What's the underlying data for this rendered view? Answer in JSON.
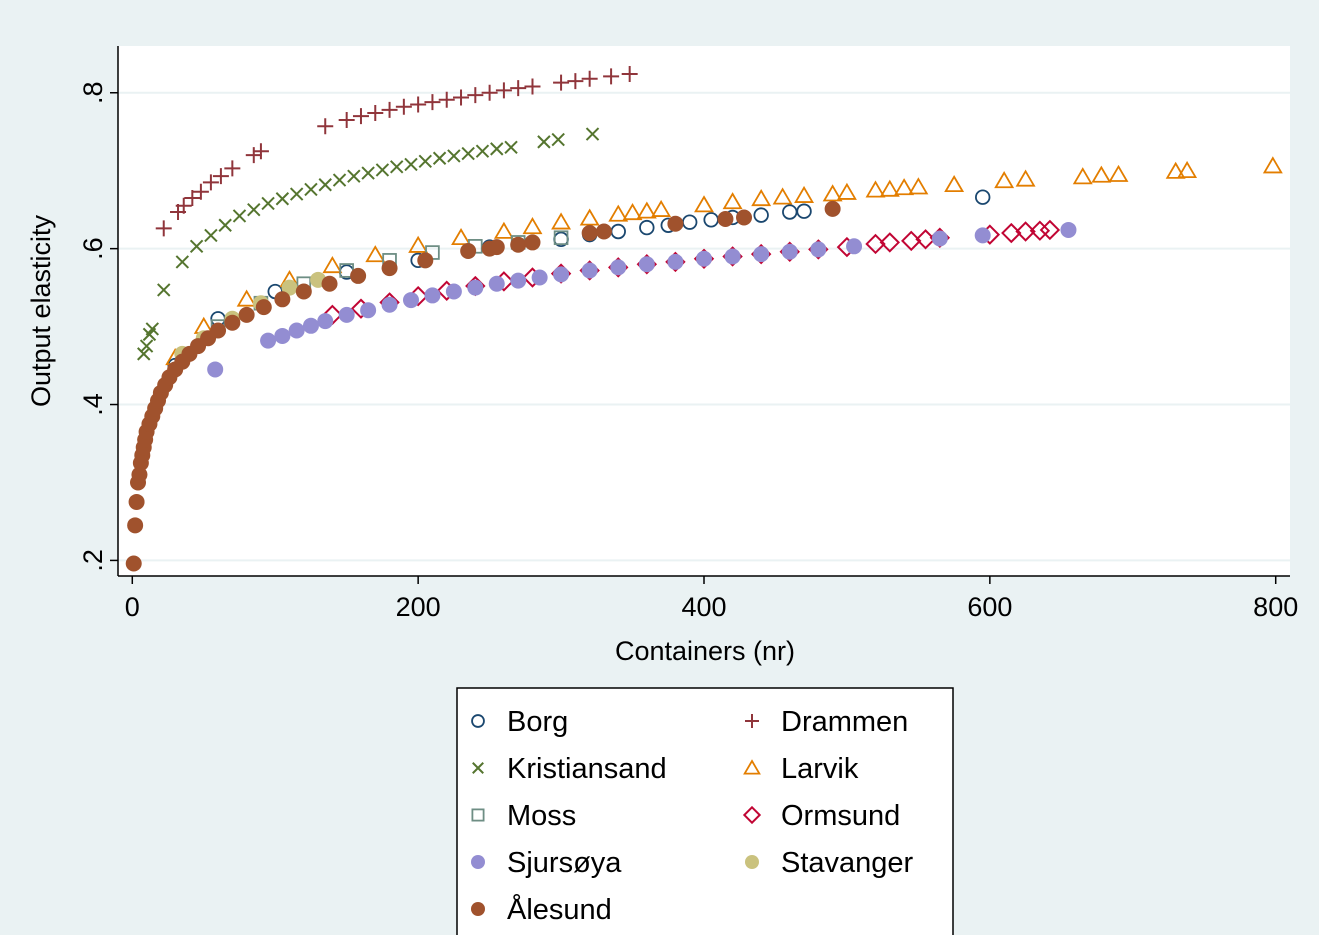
{
  "chart_data": {
    "type": "scatter",
    "title": "",
    "xlabel": "Containers (nr)",
    "ylabel": "Output elasticity",
    "xlim": [
      -10,
      810
    ],
    "ylim": [
      0.18,
      0.86
    ],
    "xticks": [
      {
        "value": 0,
        "label": "0"
      },
      {
        "value": 200,
        "label": "200"
      },
      {
        "value": 400,
        "label": "400"
      },
      {
        "value": 600,
        "label": "600"
      },
      {
        "value": 800,
        "label": "800"
      }
    ],
    "yticks": [
      {
        "value": 0.2,
        "label": ".2"
      },
      {
        "value": 0.4,
        "label": ".4"
      },
      {
        "value": 0.6,
        "label": ".6"
      },
      {
        "value": 0.8,
        "label": ".8"
      }
    ],
    "grid": true,
    "legend_position": "bottom",
    "series": [
      {
        "name": "Borg",
        "marker": "circle-open",
        "color": "#1a476f",
        "points": [
          [
            30,
            0.45
          ],
          [
            60,
            0.51
          ],
          [
            100,
            0.545
          ],
          [
            150,
            0.57
          ],
          [
            200,
            0.585
          ],
          [
            250,
            0.602
          ],
          [
            300,
            0.612
          ],
          [
            320,
            0.618
          ],
          [
            340,
            0.622
          ],
          [
            360,
            0.627
          ],
          [
            375,
            0.63
          ],
          [
            390,
            0.634
          ],
          [
            405,
            0.637
          ],
          [
            420,
            0.64
          ],
          [
            440,
            0.643
          ],
          [
            460,
            0.647
          ],
          [
            470,
            0.648
          ],
          [
            490,
            0.651
          ],
          [
            595,
            0.666
          ]
        ]
      },
      {
        "name": "Drammen",
        "marker": "plus",
        "color": "#90353b",
        "points": [
          [
            22,
            0.626
          ],
          [
            32,
            0.647
          ],
          [
            36,
            0.655
          ],
          [
            42,
            0.665
          ],
          [
            48,
            0.673
          ],
          [
            55,
            0.685
          ],
          [
            62,
            0.693
          ],
          [
            70,
            0.703
          ],
          [
            85,
            0.72
          ],
          [
            90,
            0.725
          ],
          [
            135,
            0.757
          ],
          [
            150,
            0.765
          ],
          [
            160,
            0.77
          ],
          [
            170,
            0.774
          ],
          [
            180,
            0.778
          ],
          [
            190,
            0.782
          ],
          [
            200,
            0.785
          ],
          [
            210,
            0.788
          ],
          [
            220,
            0.791
          ],
          [
            230,
            0.794
          ],
          [
            240,
            0.797
          ],
          [
            250,
            0.8
          ],
          [
            260,
            0.803
          ],
          [
            270,
            0.806
          ],
          [
            280,
            0.808
          ],
          [
            300,
            0.813
          ],
          [
            310,
            0.815
          ],
          [
            320,
            0.818
          ],
          [
            335,
            0.821
          ],
          [
            348,
            0.824
          ]
        ]
      },
      {
        "name": "Kristiansand",
        "marker": "x",
        "color": "#55752f",
        "points": [
          [
            8,
            0.465
          ],
          [
            10,
            0.475
          ],
          [
            12,
            0.49
          ],
          [
            14,
            0.497
          ],
          [
            22,
            0.547
          ],
          [
            35,
            0.583
          ],
          [
            45,
            0.603
          ],
          [
            55,
            0.617
          ],
          [
            65,
            0.63
          ],
          [
            75,
            0.642
          ],
          [
            85,
            0.65
          ],
          [
            95,
            0.658
          ],
          [
            105,
            0.664
          ],
          [
            115,
            0.67
          ],
          [
            125,
            0.676
          ],
          [
            135,
            0.682
          ],
          [
            145,
            0.688
          ],
          [
            155,
            0.693
          ],
          [
            165,
            0.697
          ],
          [
            175,
            0.701
          ],
          [
            185,
            0.705
          ],
          [
            195,
            0.708
          ],
          [
            205,
            0.712
          ],
          [
            215,
            0.716
          ],
          [
            225,
            0.719
          ],
          [
            235,
            0.722
          ],
          [
            245,
            0.725
          ],
          [
            255,
            0.728
          ],
          [
            265,
            0.73
          ],
          [
            288,
            0.737
          ],
          [
            298,
            0.74
          ],
          [
            322,
            0.747
          ]
        ]
      },
      {
        "name": "Larvik",
        "marker": "triangle-open",
        "color": "#e37e00",
        "points": [
          [
            30,
            0.46
          ],
          [
            50,
            0.5
          ],
          [
            80,
            0.535
          ],
          [
            110,
            0.56
          ],
          [
            140,
            0.578
          ],
          [
            170,
            0.592
          ],
          [
            200,
            0.604
          ],
          [
            230,
            0.614
          ],
          [
            260,
            0.622
          ],
          [
            280,
            0.628
          ],
          [
            300,
            0.634
          ],
          [
            320,
            0.639
          ],
          [
            340,
            0.644
          ],
          [
            350,
            0.646
          ],
          [
            360,
            0.648
          ],
          [
            370,
            0.65
          ],
          [
            400,
            0.656
          ],
          [
            420,
            0.66
          ],
          [
            440,
            0.664
          ],
          [
            455,
            0.666
          ],
          [
            470,
            0.668
          ],
          [
            490,
            0.67
          ],
          [
            500,
            0.672
          ],
          [
            520,
            0.675
          ],
          [
            530,
            0.676
          ],
          [
            540,
            0.678
          ],
          [
            550,
            0.679
          ],
          [
            575,
            0.682
          ],
          [
            610,
            0.687
          ],
          [
            625,
            0.689
          ],
          [
            665,
            0.692
          ],
          [
            678,
            0.694
          ],
          [
            690,
            0.695
          ],
          [
            730,
            0.699
          ],
          [
            738,
            0.7
          ],
          [
            798,
            0.706
          ]
        ]
      },
      {
        "name": "Moss",
        "marker": "square-open",
        "color": "#6e8e84",
        "points": [
          [
            35,
            0.46
          ],
          [
            60,
            0.5
          ],
          [
            90,
            0.53
          ],
          [
            120,
            0.555
          ],
          [
            150,
            0.572
          ],
          [
            180,
            0.585
          ],
          [
            210,
            0.595
          ],
          [
            240,
            0.603
          ],
          [
            270,
            0.608
          ],
          [
            300,
            0.614
          ]
        ]
      },
      {
        "name": "Ormsund",
        "marker": "diamond-open",
        "color": "#c10534",
        "points": [
          [
            140,
            0.515
          ],
          [
            160,
            0.523
          ],
          [
            180,
            0.531
          ],
          [
            200,
            0.539
          ],
          [
            220,
            0.546
          ],
          [
            240,
            0.552
          ],
          [
            260,
            0.558
          ],
          [
            280,
            0.563
          ],
          [
            300,
            0.568
          ],
          [
            320,
            0.572
          ],
          [
            340,
            0.576
          ],
          [
            360,
            0.58
          ],
          [
            380,
            0.583
          ],
          [
            400,
            0.587
          ],
          [
            420,
            0.59
          ],
          [
            440,
            0.593
          ],
          [
            460,
            0.596
          ],
          [
            480,
            0.599
          ],
          [
            500,
            0.602
          ],
          [
            520,
            0.606
          ],
          [
            530,
            0.608
          ],
          [
            545,
            0.61
          ],
          [
            555,
            0.612
          ],
          [
            565,
            0.614
          ],
          [
            600,
            0.618
          ],
          [
            615,
            0.62
          ],
          [
            625,
            0.622
          ],
          [
            635,
            0.623
          ],
          [
            642,
            0.624
          ]
        ]
      },
      {
        "name": "Sjursøya",
        "marker": "circle",
        "color": "#938dd2",
        "points": [
          [
            58,
            0.445
          ],
          [
            95,
            0.482
          ],
          [
            105,
            0.488
          ],
          [
            115,
            0.495
          ],
          [
            125,
            0.501
          ],
          [
            135,
            0.507
          ],
          [
            150,
            0.515
          ],
          [
            165,
            0.521
          ],
          [
            180,
            0.528
          ],
          [
            195,
            0.534
          ],
          [
            210,
            0.54
          ],
          [
            225,
            0.545
          ],
          [
            240,
            0.55
          ],
          [
            255,
            0.555
          ],
          [
            270,
            0.559
          ],
          [
            285,
            0.563
          ],
          [
            300,
            0.567
          ],
          [
            320,
            0.572
          ],
          [
            340,
            0.576
          ],
          [
            360,
            0.58
          ],
          [
            380,
            0.583
          ],
          [
            400,
            0.587
          ],
          [
            420,
            0.59
          ],
          [
            440,
            0.593
          ],
          [
            460,
            0.596
          ],
          [
            480,
            0.599
          ],
          [
            505,
            0.603
          ],
          [
            565,
            0.613
          ],
          [
            595,
            0.617
          ],
          [
            655,
            0.624
          ]
        ]
      },
      {
        "name": "Stavanger",
        "marker": "circle",
        "color": "#cac27e",
        "points": [
          [
            35,
            0.465
          ],
          [
            50,
            0.485
          ],
          [
            70,
            0.51
          ],
          [
            90,
            0.53
          ],
          [
            110,
            0.55
          ],
          [
            130,
            0.56
          ]
        ]
      },
      {
        "name": "Ålesund",
        "marker": "circle",
        "color": "#a0522d",
        "points": [
          [
            1,
            0.196
          ],
          [
            2,
            0.245
          ],
          [
            3,
            0.275
          ],
          [
            4,
            0.3
          ],
          [
            5,
            0.31
          ],
          [
            6,
            0.325
          ],
          [
            7,
            0.335
          ],
          [
            8,
            0.345
          ],
          [
            9,
            0.355
          ],
          [
            10,
            0.365
          ],
          [
            12,
            0.375
          ],
          [
            14,
            0.385
          ],
          [
            16,
            0.395
          ],
          [
            18,
            0.405
          ],
          [
            20,
            0.415
          ],
          [
            23,
            0.425
          ],
          [
            26,
            0.435
          ],
          [
            30,
            0.445
          ],
          [
            35,
            0.455
          ],
          [
            40,
            0.465
          ],
          [
            46,
            0.475
          ],
          [
            53,
            0.485
          ],
          [
            60,
            0.495
          ],
          [
            70,
            0.505
          ],
          [
            80,
            0.515
          ],
          [
            92,
            0.525
          ],
          [
            105,
            0.535
          ],
          [
            120,
            0.545
          ],
          [
            138,
            0.555
          ],
          [
            158,
            0.565
          ],
          [
            180,
            0.575
          ],
          [
            205,
            0.585
          ],
          [
            235,
            0.597
          ],
          [
            250,
            0.6
          ],
          [
            255,
            0.602
          ],
          [
            270,
            0.605
          ],
          [
            280,
            0.608
          ],
          [
            320,
            0.62
          ],
          [
            330,
            0.622
          ],
          [
            380,
            0.632
          ],
          [
            415,
            0.638
          ],
          [
            428,
            0.64
          ],
          [
            490,
            0.651
          ]
        ]
      }
    ]
  }
}
